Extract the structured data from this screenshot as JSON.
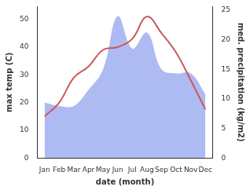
{
  "chart_data": {
    "type": "line",
    "x_label": "date (month)",
    "y_label": "max temp (C)",
    "y2_label": "med. precipitation (kg/m2)",
    "categories": [
      "Jan",
      "Feb",
      "Mar",
      "Apr",
      "May",
      "Jun",
      "Jul",
      "Aug",
      "Sep",
      "Oct",
      "Nov",
      "Dec"
    ],
    "series": [
      {
        "name": "med. precipitation (kg/m2)",
        "type": "area",
        "axis": "y2",
        "color": "#aebbf2",
        "marker": "none",
        "values": [
          9.4,
          8.8,
          8.8,
          11.5,
          15,
          24,
          18.5,
          21.2,
          15,
          14.3,
          14.3,
          10.8
        ]
      },
      {
        "name": "max temp (C)",
        "type": "line",
        "axis": "y",
        "color": "#c85a5a",
        "marker": "none",
        "values": [
          15,
          20,
          29,
          33,
          39,
          40,
          43,
          51,
          45,
          38,
          28,
          17.5
        ]
      }
    ],
    "ylim": [
      0,
      54.6
    ],
    "yticks": [
      0,
      10,
      20,
      30,
      40,
      50
    ],
    "y2lim": [
      0,
      25.6
    ],
    "y2ticks": [
      0,
      5,
      10,
      15,
      20,
      25
    ],
    "grid": false
  }
}
